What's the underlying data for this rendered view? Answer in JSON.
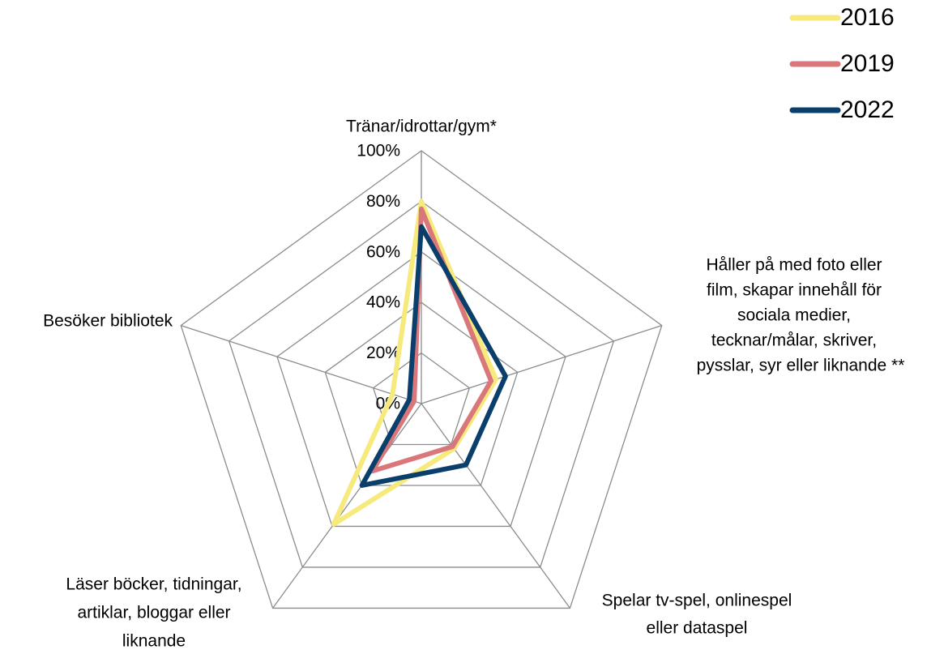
{
  "chart_data": {
    "type": "radar",
    "categories": [
      [
        "Tränar/idrottar/gym*"
      ],
      [
        "Håller på med foto eller",
        "film, skapar innehåll för",
        "sociala medier,",
        "tecknar/målar, skriver,",
        "pysslar, syr eller liknande **"
      ],
      [
        "Spelar tv-spel, onlinespel",
        "eller dataspel"
      ],
      [
        "Läser böcker, tidningar,",
        "artiklar, bloggar eller",
        "liknande"
      ],
      [
        "Besöker bibliotek"
      ]
    ],
    "series": [
      {
        "name": "2016",
        "color": "#f6ea7d",
        "values": [
          80,
          31,
          22,
          59,
          12
        ]
      },
      {
        "name": "2019",
        "color": "#d9777b",
        "values": [
          77,
          29,
          21,
          33,
          3
        ]
      },
      {
        "name": "2022",
        "color": "#0b3f6b",
        "values": [
          70,
          35,
          30,
          40,
          5
        ]
      }
    ],
    "ylim": [
      0,
      100
    ],
    "yticks": [
      {
        "value": 0,
        "label": "0%"
      },
      {
        "value": 20,
        "label": "20%"
      },
      {
        "value": 40,
        "label": "40%"
      },
      {
        "value": 60,
        "label": "60%"
      },
      {
        "value": 80,
        "label": "80%"
      },
      {
        "value": 100,
        "label": "100%"
      }
    ],
    "grid": true,
    "legend": "top-right"
  }
}
